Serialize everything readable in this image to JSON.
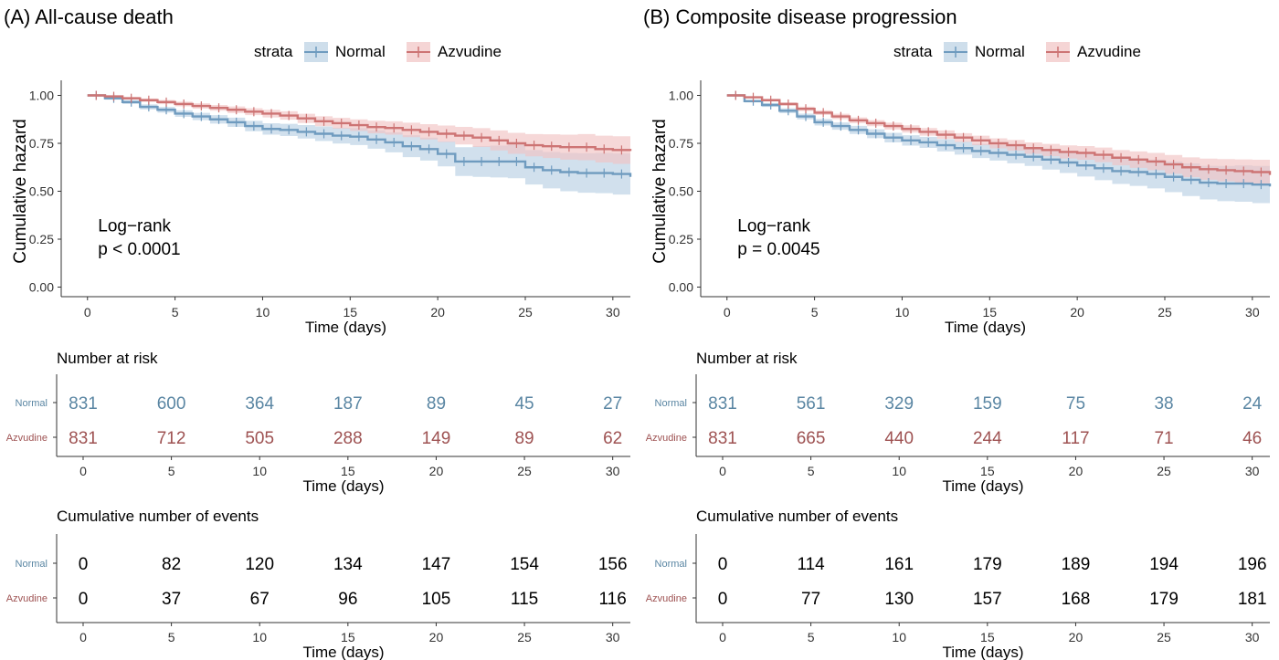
{
  "colors": {
    "normal": "#6f9bbf",
    "azvudine": "#cd7474",
    "normal_band": "#b9d0e3",
    "azvudine_band": "#f1c3c3",
    "normal_table_text": "#5a86a3",
    "azvudine_table_text": "#9e5252",
    "axis": "#333333"
  },
  "strata_label": "strata",
  "strata": [
    "Normal",
    "Azvudine"
  ],
  "risk_title": "Number at risk",
  "events_title": "Cumulative number of events",
  "chart_data": [
    {
      "type": "line",
      "panel": "(A)",
      "title": "All-cause death",
      "xlabel": "Time (days)",
      "ylabel": "Cumulative hazard",
      "xlim": [
        -1.5,
        31
      ],
      "ylim": [
        -0.05,
        1.05
      ],
      "x_ticks": [
        0,
        5,
        10,
        15,
        20,
        25,
        30
      ],
      "y_ticks": [
        0,
        0.25,
        0.5,
        0.75,
        1.0
      ],
      "y_tick_labels": [
        "0.00",
        "0.25",
        "0.50",
        "0.75",
        "1.00"
      ],
      "grid": false,
      "legend_position": "top",
      "annotation": [
        "Log−rank",
        "p < 0.0001"
      ],
      "series": [
        {
          "name": "Normal",
          "x": [
            0,
            1,
            2,
            3,
            4,
            5,
            6,
            7,
            8,
            9,
            10,
            11,
            12,
            13,
            14,
            15,
            16,
            17,
            18,
            19,
            20,
            21,
            22,
            23,
            24,
            25,
            26,
            27,
            28,
            29,
            30,
            31
          ],
          "y": [
            1.0,
            0.985,
            0.965,
            0.94,
            0.925,
            0.905,
            0.89,
            0.875,
            0.86,
            0.84,
            0.825,
            0.82,
            0.81,
            0.8,
            0.79,
            0.785,
            0.77,
            0.755,
            0.735,
            0.72,
            0.695,
            0.655,
            0.655,
            0.655,
            0.655,
            0.625,
            0.61,
            0.6,
            0.595,
            0.595,
            0.59,
            0.575
          ],
          "ci_lower": [
            1.0,
            0.978,
            0.955,
            0.927,
            0.91,
            0.888,
            0.871,
            0.853,
            0.836,
            0.813,
            0.795,
            0.788,
            0.775,
            0.762,
            0.749,
            0.741,
            0.722,
            0.703,
            0.678,
            0.66,
            0.63,
            0.58,
            0.575,
            0.572,
            0.568,
            0.535,
            0.515,
            0.5,
            0.492,
            0.49,
            0.483,
            0.465
          ],
          "ci_upper": [
            1.0,
            0.992,
            0.975,
            0.953,
            0.94,
            0.922,
            0.909,
            0.897,
            0.884,
            0.867,
            0.855,
            0.852,
            0.845,
            0.838,
            0.831,
            0.829,
            0.818,
            0.807,
            0.792,
            0.78,
            0.76,
            0.73,
            0.735,
            0.738,
            0.742,
            0.715,
            0.705,
            0.7,
            0.698,
            0.7,
            0.697,
            0.685
          ]
        },
        {
          "name": "Azvudine",
          "x": [
            0,
            1,
            2,
            3,
            4,
            5,
            6,
            7,
            8,
            9,
            10,
            11,
            12,
            13,
            14,
            15,
            16,
            17,
            18,
            19,
            20,
            21,
            22,
            23,
            24,
            25,
            26,
            27,
            28,
            29,
            30,
            31
          ],
          "y": [
            1.0,
            0.995,
            0.985,
            0.975,
            0.965,
            0.955,
            0.945,
            0.935,
            0.925,
            0.915,
            0.905,
            0.895,
            0.88,
            0.865,
            0.855,
            0.845,
            0.835,
            0.83,
            0.82,
            0.81,
            0.8,
            0.79,
            0.78,
            0.765,
            0.75,
            0.74,
            0.735,
            0.73,
            0.73,
            0.72,
            0.715,
            0.71
          ],
          "ci_lower": [
            1.0,
            0.99,
            0.978,
            0.966,
            0.954,
            0.943,
            0.931,
            0.92,
            0.908,
            0.897,
            0.885,
            0.873,
            0.856,
            0.839,
            0.827,
            0.815,
            0.802,
            0.795,
            0.782,
            0.77,
            0.757,
            0.744,
            0.731,
            0.713,
            0.695,
            0.682,
            0.673,
            0.665,
            0.662,
            0.65,
            0.643,
            0.635
          ],
          "ci_upper": [
            1.0,
            1.0,
            0.992,
            0.984,
            0.976,
            0.967,
            0.959,
            0.95,
            0.942,
            0.933,
            0.925,
            0.917,
            0.904,
            0.891,
            0.883,
            0.875,
            0.868,
            0.865,
            0.858,
            0.85,
            0.843,
            0.836,
            0.829,
            0.817,
            0.805,
            0.798,
            0.797,
            0.795,
            0.798,
            0.79,
            0.787,
            0.785
          ]
        }
      ],
      "risk_table": {
        "x": [
          0,
          5,
          10,
          15,
          20,
          25,
          30
        ],
        "rows": [
          {
            "name": "Normal",
            "values": [
              831,
              600,
              364,
              187,
              89,
              45,
              27
            ]
          },
          {
            "name": "Azvudine",
            "values": [
              831,
              712,
              505,
              288,
              149,
              89,
              62
            ]
          }
        ]
      },
      "events_table": {
        "x": [
          0,
          5,
          10,
          15,
          20,
          25,
          30
        ],
        "rows": [
          {
            "name": "Normal",
            "values": [
              0,
              82,
              120,
              134,
              147,
              154,
              156
            ]
          },
          {
            "name": "Azvudine",
            "values": [
              0,
              37,
              67,
              96,
              105,
              115,
              116
            ]
          }
        ]
      }
    },
    {
      "type": "line",
      "panel": "(B)",
      "title": "Composite disease progression",
      "xlabel": "Time (days)",
      "ylabel": "Cumulative hazard",
      "xlim": [
        -1.5,
        31
      ],
      "ylim": [
        -0.05,
        1.05
      ],
      "x_ticks": [
        0,
        5,
        10,
        15,
        20,
        25,
        30
      ],
      "y_ticks": [
        0,
        0.25,
        0.5,
        0.75,
        1.0
      ],
      "y_tick_labels": [
        "0.00",
        "0.25",
        "0.50",
        "0.75",
        "1.00"
      ],
      "grid": false,
      "legend_position": "top",
      "annotation": [
        "Log−rank",
        "p = 0.0045"
      ],
      "series": [
        {
          "name": "Normal",
          "x": [
            0,
            1,
            2,
            3,
            4,
            5,
            6,
            7,
            8,
            9,
            10,
            11,
            12,
            13,
            14,
            15,
            16,
            17,
            18,
            19,
            20,
            21,
            22,
            23,
            24,
            25,
            26,
            27,
            28,
            29,
            30,
            31
          ],
          "y": [
            1.0,
            0.97,
            0.95,
            0.92,
            0.89,
            0.86,
            0.84,
            0.82,
            0.8,
            0.78,
            0.765,
            0.755,
            0.74,
            0.725,
            0.71,
            0.7,
            0.69,
            0.68,
            0.665,
            0.65,
            0.635,
            0.62,
            0.605,
            0.6,
            0.59,
            0.575,
            0.56,
            0.545,
            0.54,
            0.54,
            0.535,
            0.525
          ],
          "ci_lower": [
            1.0,
            0.963,
            0.94,
            0.907,
            0.875,
            0.843,
            0.821,
            0.799,
            0.777,
            0.755,
            0.738,
            0.726,
            0.708,
            0.691,
            0.673,
            0.66,
            0.646,
            0.632,
            0.613,
            0.595,
            0.577,
            0.558,
            0.538,
            0.528,
            0.515,
            0.495,
            0.475,
            0.457,
            0.448,
            0.445,
            0.438,
            0.425
          ],
          "ci_upper": [
            1.0,
            0.977,
            0.96,
            0.933,
            0.905,
            0.877,
            0.859,
            0.841,
            0.823,
            0.805,
            0.792,
            0.784,
            0.772,
            0.759,
            0.747,
            0.74,
            0.734,
            0.728,
            0.717,
            0.705,
            0.693,
            0.682,
            0.672,
            0.672,
            0.665,
            0.655,
            0.645,
            0.633,
            0.632,
            0.635,
            0.632,
            0.625
          ]
        },
        {
          "name": "Azvudine",
          "x": [
            0,
            1,
            2,
            3,
            4,
            5,
            6,
            7,
            8,
            9,
            10,
            11,
            12,
            13,
            14,
            15,
            16,
            17,
            18,
            19,
            20,
            21,
            22,
            23,
            24,
            25,
            26,
            27,
            28,
            29,
            30,
            31
          ],
          "y": [
            1.0,
            0.99,
            0.975,
            0.955,
            0.93,
            0.91,
            0.89,
            0.87,
            0.855,
            0.84,
            0.825,
            0.81,
            0.795,
            0.78,
            0.765,
            0.75,
            0.74,
            0.725,
            0.715,
            0.705,
            0.7,
            0.69,
            0.675,
            0.665,
            0.655,
            0.64,
            0.625,
            0.615,
            0.61,
            0.605,
            0.6,
            0.585
          ],
          "ci_lower": [
            1.0,
            0.985,
            0.968,
            0.946,
            0.919,
            0.898,
            0.876,
            0.855,
            0.839,
            0.822,
            0.806,
            0.79,
            0.773,
            0.757,
            0.74,
            0.724,
            0.712,
            0.695,
            0.683,
            0.671,
            0.664,
            0.652,
            0.635,
            0.622,
            0.61,
            0.591,
            0.573,
            0.56,
            0.552,
            0.544,
            0.536,
            0.518
          ],
          "ci_upper": [
            1.0,
            0.995,
            0.982,
            0.964,
            0.941,
            0.922,
            0.904,
            0.885,
            0.871,
            0.858,
            0.844,
            0.83,
            0.817,
            0.803,
            0.79,
            0.776,
            0.768,
            0.755,
            0.747,
            0.739,
            0.736,
            0.728,
            0.715,
            0.708,
            0.7,
            0.689,
            0.677,
            0.67,
            0.668,
            0.666,
            0.664,
            0.652
          ]
        }
      ],
      "risk_table": {
        "x": [
          0,
          5,
          10,
          15,
          20,
          25,
          30
        ],
        "rows": [
          {
            "name": "Normal",
            "values": [
              831,
              561,
              329,
              159,
              75,
              38,
              24
            ]
          },
          {
            "name": "Azvudine",
            "values": [
              831,
              665,
              440,
              244,
              117,
              71,
              46
            ]
          }
        ]
      },
      "events_table": {
        "x": [
          0,
          5,
          10,
          15,
          20,
          25,
          30
        ],
        "rows": [
          {
            "name": "Normal",
            "values": [
              0,
              114,
              161,
              179,
              189,
              194,
              196
            ]
          },
          {
            "name": "Azvudine",
            "values": [
              0,
              77,
              130,
              157,
              168,
              179,
              181
            ]
          }
        ]
      }
    }
  ]
}
